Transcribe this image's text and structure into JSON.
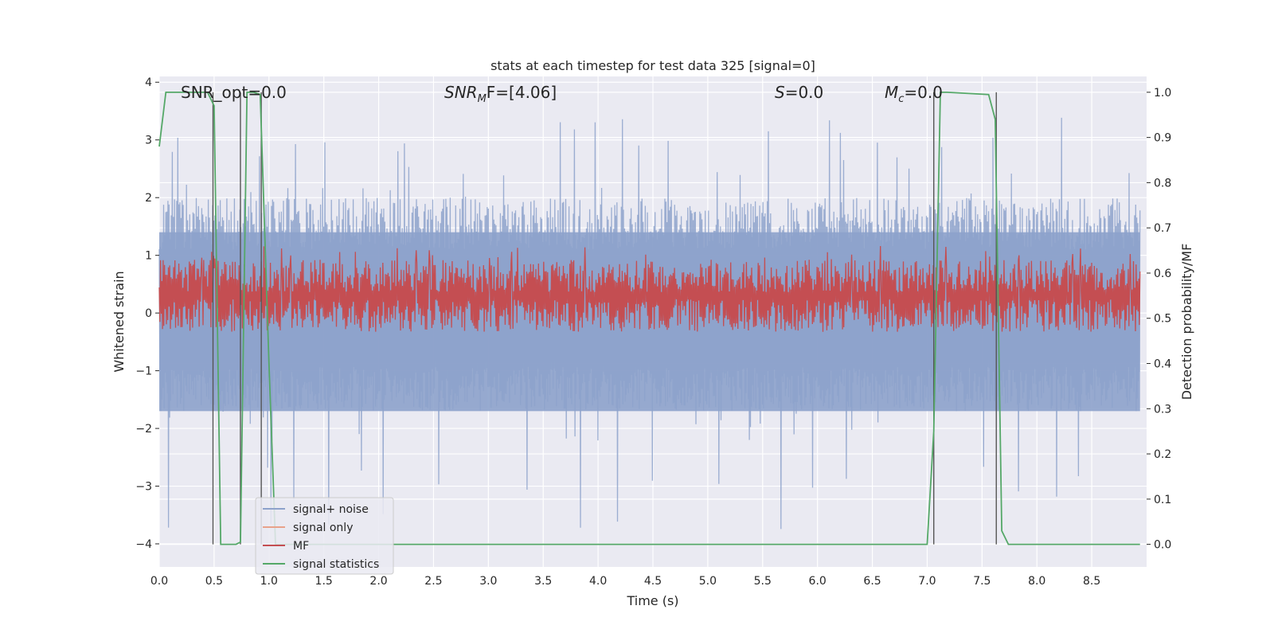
{
  "chart_data": {
    "type": "line",
    "title": "stats at each timestep for test data 325 [signal=0]",
    "xlabel": "Time (s)",
    "ylabel": "Whitened strain",
    "ylabel_right": "Detection probability/MF",
    "xlim": [
      0.0,
      9.0
    ],
    "ylim": [
      -4.4,
      4.1
    ],
    "ylim_right": [
      -0.05,
      1.035
    ],
    "xticks": [
      "0.0",
      "0.5",
      "1.0",
      "1.5",
      "2.0",
      "2.5",
      "3.0",
      "3.5",
      "4.0",
      "4.5",
      "5.0",
      "5.5",
      "6.0",
      "6.5",
      "7.0",
      "7.5",
      "8.0",
      "8.5"
    ],
    "yticks": [
      "4",
      "3",
      "2",
      "1",
      "0",
      "−1",
      "−2",
      "−3",
      "−4"
    ],
    "yticks_right": [
      "1.0",
      "0.9",
      "0.8",
      "0.7",
      "0.6",
      "0.5",
      "0.4",
      "0.3",
      "0.2",
      "0.1",
      "0.0"
    ],
    "grid": true,
    "legend_position": "lower-left",
    "annotations": {
      "snr_opt": "SNR_opt=0.0",
      "snr_mf_main": "SNR",
      "snr_mf_sub": "M",
      "snr_mf_rest": "F=[4.06]",
      "s_main": "S",
      "s_rest": "=0.0",
      "mc_main": "M",
      "mc_sub": "c",
      "mc_rest": "=0.0"
    },
    "series": [
      {
        "name": "signal+ noise",
        "color": "#8da2cb",
        "noise_envelope": {
          "typical_max": 2.0,
          "typical_min": -1.7,
          "peak": 3.4,
          "trough": -3.8
        }
      },
      {
        "name": "signal only",
        "color": "#e8a28a",
        "values": []
      },
      {
        "name": "MF",
        "color": "#c44e52",
        "axis": "right",
        "noise_band": [
          0.47,
          0.63
        ]
      },
      {
        "name": "signal statistics",
        "color": "#55a868",
        "axis": "right",
        "x": [
          0.0,
          0.06,
          0.44,
          0.5,
          0.56,
          0.7,
          0.74,
          0.8,
          0.86,
          0.92,
          1.0,
          1.06,
          7.0,
          7.06,
          7.12,
          7.18,
          7.56,
          7.62,
          7.68,
          7.74,
          8.94
        ],
        "values": [
          0.88,
          1.0,
          1.0,
          0.97,
          0.0,
          0.0,
          0.005,
          1.0,
          1.0,
          0.995,
          0.4,
          0.0,
          0.0,
          0.25,
          1.0,
          1.0,
          0.995,
          0.94,
          0.03,
          0.0,
          0.0
        ]
      }
    ],
    "vertical_markers_x": [
      0.49,
      0.74,
      0.93,
      7.06,
      7.63
    ]
  }
}
